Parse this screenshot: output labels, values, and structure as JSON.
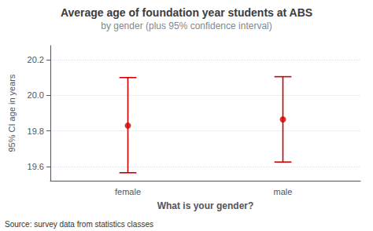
{
  "chart_data": {
    "type": "errorbar",
    "title": "Average age of foundation year students at ABS",
    "subtitle": "by gender (plus 95% confidence interval)",
    "xlabel": "What is your gender?",
    "ylabel": "95% CI age in years",
    "source": "Source: survey data from statistics classes",
    "categories": [
      "female",
      "male"
    ],
    "values": [
      19.83,
      19.865
    ],
    "ci_upper": [
      20.1,
      20.105
    ],
    "ci_lower": [
      19.565,
      19.625
    ],
    "color": "#cc0000",
    "ylim": [
      19.52,
      20.28
    ],
    "yticks": [
      19.6,
      19.8,
      {
        "value": 20.0,
        "label": "20.0"
      },
      20.2
    ],
    "grid": true
  }
}
